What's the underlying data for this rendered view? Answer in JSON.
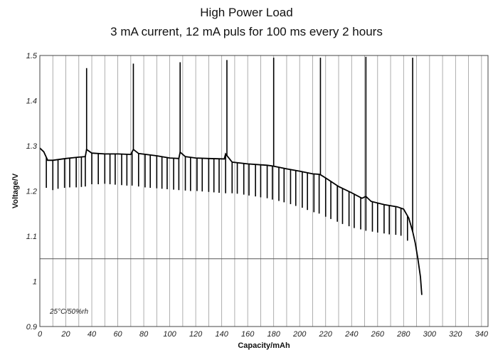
{
  "chart_data": {
    "type": "line",
    "title": "High Power Load",
    "subtitle": "3 mA current, 12 mA puls for 100 ms every 2 hours",
    "xlabel": "Capacity/mAh",
    "ylabel": "Voltage/V",
    "annotation": "25°C/50%rh",
    "xlim": [
      0,
      345
    ],
    "ylim": [
      0.9,
      1.5
    ],
    "x_ticks": [
      "0",
      "20",
      "40",
      "60",
      "80",
      "100",
      "120",
      "140",
      "160",
      "180",
      "200",
      "220",
      "240",
      "260",
      "280",
      "300",
      "320",
      "340"
    ],
    "y_ticks": [
      "0.9",
      "1",
      "1.1",
      "1.2",
      "1.3",
      "1.4",
      "1.5"
    ],
    "grid": "vertical",
    "reference_line_y": 1.05,
    "series": [
      {
        "values": [
          [
            0,
            1.295
          ],
          [
            3,
            1.287
          ],
          [
            6,
            1.268
          ],
          [
            10,
            1.268
          ],
          [
            20,
            1.272
          ],
          [
            30,
            1.275
          ],
          [
            35,
            1.276
          ],
          [
            36,
            1.292
          ],
          [
            40,
            1.284
          ],
          [
            50,
            1.282
          ],
          [
            60,
            1.282
          ],
          [
            70,
            1.281
          ],
          [
            72,
            1.292
          ],
          [
            76,
            1.283
          ],
          [
            90,
            1.278
          ],
          [
            100,
            1.273
          ],
          [
            107,
            1.272
          ],
          [
            108,
            1.286
          ],
          [
            112,
            1.276
          ],
          [
            120,
            1.273
          ],
          [
            130,
            1.272
          ],
          [
            142,
            1.271
          ],
          [
            143,
            1.282
          ],
          [
            148,
            1.264
          ],
          [
            160,
            1.26
          ],
          [
            175,
            1.257
          ],
          [
            180,
            1.255
          ],
          [
            190,
            1.249
          ],
          [
            200,
            1.244
          ],
          [
            210,
            1.238
          ],
          [
            215,
            1.237
          ],
          [
            216,
            1.236
          ],
          [
            220,
            1.229
          ],
          [
            230,
            1.21
          ],
          [
            240,
            1.196
          ],
          [
            248,
            1.184
          ],
          [
            251,
            1.188
          ],
          [
            255,
            1.177
          ],
          [
            265,
            1.17
          ],
          [
            275,
            1.165
          ],
          [
            280,
            1.16
          ],
          [
            284,
            1.14
          ],
          [
            287,
            1.11
          ],
          [
            289,
            1.085
          ],
          [
            291,
            1.05
          ],
          [
            293,
            1.01
          ],
          [
            294,
            0.97
          ]
        ]
      }
    ],
    "pulse_spikes": [
      {
        "x": 36,
        "peak": 1.472
      },
      {
        "x": 72,
        "peak": 1.482
      },
      {
        "x": 108,
        "peak": 1.485
      },
      {
        "x": 144,
        "peak": 1.49
      },
      {
        "x": 180,
        "peak": 1.495
      },
      {
        "x": 216,
        "peak": 1.495
      },
      {
        "x": 251,
        "peak": 1.497
      },
      {
        "x": 287,
        "peak": 1.495
      }
    ],
    "pulse_dips": [
      {
        "x": 5,
        "low": 1.207
      },
      {
        "x": 10,
        "low": 1.202
      },
      {
        "x": 14,
        "low": 1.205
      },
      {
        "x": 19,
        "low": 1.207
      },
      {
        "x": 23,
        "low": 1.208
      },
      {
        "x": 28,
        "low": 1.208
      },
      {
        "x": 32,
        "low": 1.209
      },
      {
        "x": 35,
        "low": 1.21
      },
      {
        "x": 40,
        "low": 1.215
      },
      {
        "x": 45,
        "low": 1.215
      },
      {
        "x": 50,
        "low": 1.216
      },
      {
        "x": 54,
        "low": 1.215
      },
      {
        "x": 58,
        "low": 1.214
      },
      {
        "x": 63,
        "low": 1.213
      },
      {
        "x": 67,
        "low": 1.212
      },
      {
        "x": 71,
        "low": 1.212
      },
      {
        "x": 76,
        "low": 1.21
      },
      {
        "x": 81,
        "low": 1.208
      },
      {
        "x": 85,
        "low": 1.207
      },
      {
        "x": 90,
        "low": 1.206
      },
      {
        "x": 94,
        "low": 1.205
      },
      {
        "x": 98,
        "low": 1.204
      },
      {
        "x": 103,
        "low": 1.203
      },
      {
        "x": 107,
        "low": 1.202
      },
      {
        "x": 112,
        "low": 1.201
      },
      {
        "x": 116,
        "low": 1.2
      },
      {
        "x": 121,
        "low": 1.2
      },
      {
        "x": 125,
        "low": 1.199
      },
      {
        "x": 130,
        "low": 1.198
      },
      {
        "x": 134,
        "low": 1.197
      },
      {
        "x": 138,
        "low": 1.196
      },
      {
        "x": 143,
        "low": 1.195
      },
      {
        "x": 148,
        "low": 1.195
      },
      {
        "x": 152,
        "low": 1.194
      },
      {
        "x": 157,
        "low": 1.192
      },
      {
        "x": 161,
        "low": 1.19
      },
      {
        "x": 166,
        "low": 1.188
      },
      {
        "x": 170,
        "low": 1.186
      },
      {
        "x": 175,
        "low": 1.184
      },
      {
        "x": 179,
        "low": 1.181
      },
      {
        "x": 184,
        "low": 1.178
      },
      {
        "x": 188,
        "low": 1.175
      },
      {
        "x": 193,
        "low": 1.171
      },
      {
        "x": 197,
        "low": 1.167
      },
      {
        "x": 202,
        "low": 1.163
      },
      {
        "x": 206,
        "low": 1.158
      },
      {
        "x": 211,
        "low": 1.153
      },
      {
        "x": 215,
        "low": 1.15
      },
      {
        "x": 220,
        "low": 1.143
      },
      {
        "x": 224,
        "low": 1.138
      },
      {
        "x": 229,
        "low": 1.132
      },
      {
        "x": 233,
        "low": 1.127
      },
      {
        "x": 238,
        "low": 1.122
      },
      {
        "x": 242,
        "low": 1.118
      },
      {
        "x": 247,
        "low": 1.115
      },
      {
        "x": 251,
        "low": 1.112
      },
      {
        "x": 256,
        "low": 1.11
      },
      {
        "x": 260,
        "low": 1.108
      },
      {
        "x": 265,
        "low": 1.106
      },
      {
        "x": 269,
        "low": 1.104
      },
      {
        "x": 274,
        "low": 1.103
      },
      {
        "x": 278,
        "low": 1.101
      },
      {
        "x": 283,
        "low": 1.09
      }
    ]
  }
}
